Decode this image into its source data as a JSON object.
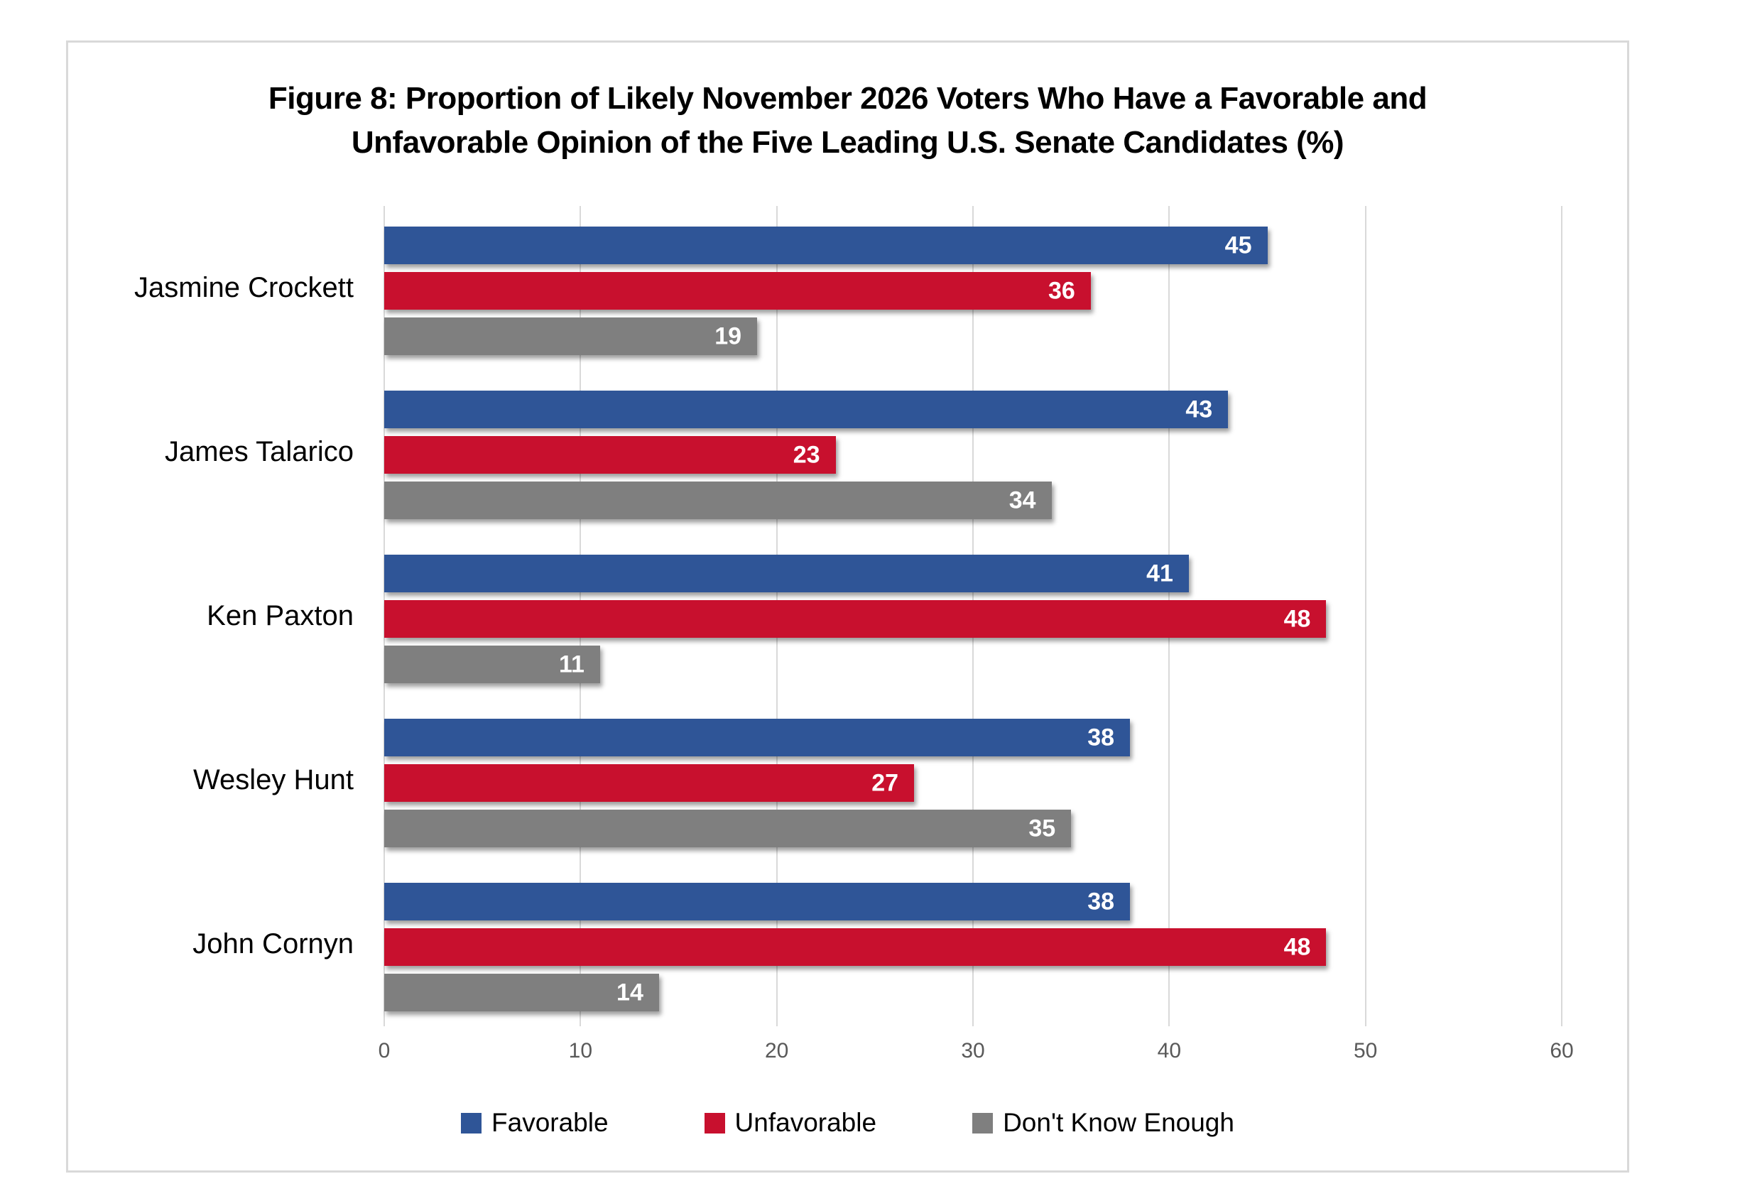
{
  "chart_data": {
    "type": "bar",
    "orientation": "horizontal",
    "title": "Figure 8: Proportion of Likely November 2026 Voters Who Have a Favorable and Unfavorable Opinion of the Five Leading U.S. Senate Candidates (%)",
    "title_line1": "Figure 8: Proportion of Likely November 2026 Voters Who Have a Favorable and",
    "title_line2": "Unfavorable Opinion of the Five Leading U.S. Senate Candidates (%)",
    "categories": [
      "Jasmine Crockett",
      "James Talarico",
      "Ken Paxton",
      "Wesley Hunt",
      "John Cornyn"
    ],
    "series": [
      {
        "name": "Favorable",
        "color": "#2F5597",
        "values": [
          45,
          43,
          41,
          38,
          38
        ]
      },
      {
        "name": "Unfavorable",
        "color": "#C8102E",
        "values": [
          36,
          23,
          48,
          27,
          48
        ]
      },
      {
        "name": "Don't Know Enough",
        "color": "#7F7F7F",
        "values": [
          19,
          34,
          11,
          35,
          14
        ]
      }
    ],
    "x_axis": {
      "min": 0,
      "max": 60,
      "ticks": [
        0,
        10,
        20,
        30,
        40,
        50,
        60
      ]
    },
    "grid": "vertical",
    "gridline_color": "#D9D9D9",
    "legend_position": "bottom",
    "value_label_color": "#FFFFFF",
    "axis_label_color": "#595959",
    "background_color": "#FFFFFF",
    "border_color": "#D9D9D9"
  }
}
